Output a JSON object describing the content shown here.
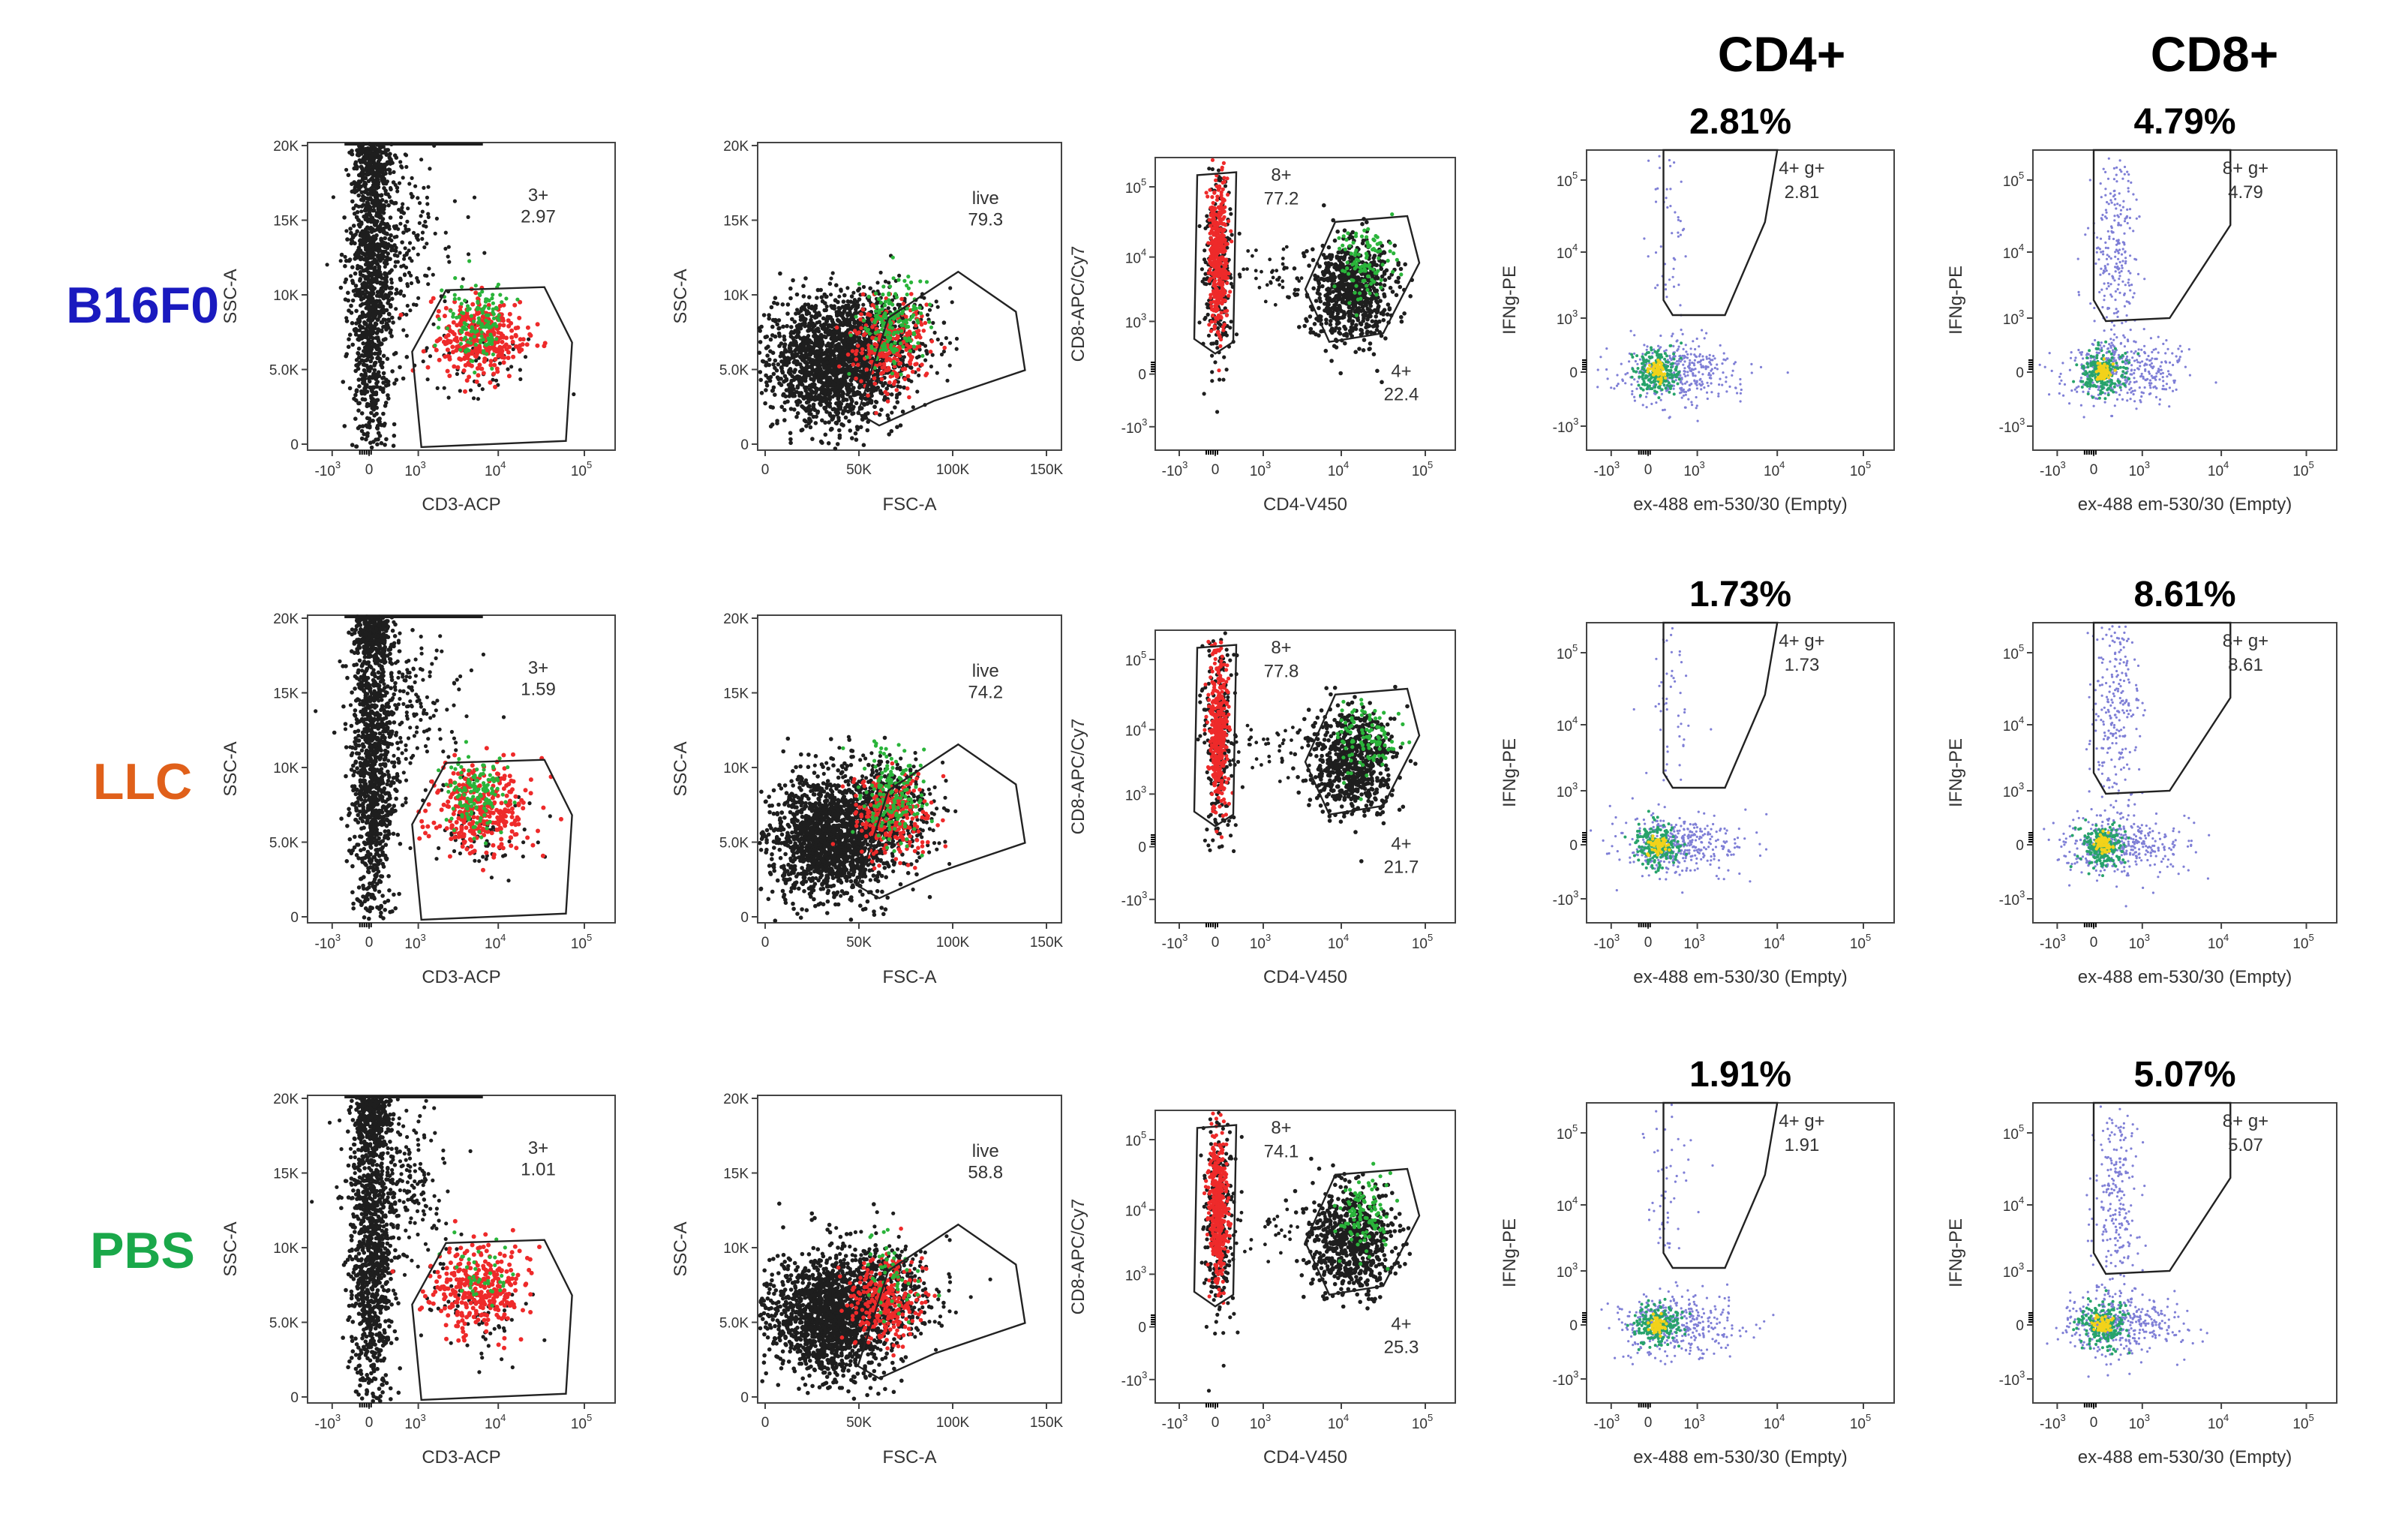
{
  "chart_data": {
    "type": "scatter",
    "column_headers": [
      "CD4+",
      "CD8+"
    ],
    "rows": [
      {
        "label": "B16F0",
        "color": "#1a1abf",
        "panels": {
          "cd3": {
            "gate": "3+",
            "value": "2.97"
          },
          "live": {
            "gate": "live",
            "value": "79.3"
          },
          "cd4cd8": {
            "gate8": "8+",
            "value8": "77.2",
            "gate4": "4+",
            "value4": "22.4"
          },
          "ifn_cd4": {
            "gate": "4+ g+",
            "value": "2.81",
            "percent": "2.81%"
          },
          "ifn_cd8": {
            "gate": "8+ g+",
            "value": "4.79",
            "percent": "4.79%"
          }
        }
      },
      {
        "label": "LLC",
        "color": "#e0601a",
        "panels": {
          "cd3": {
            "gate": "3+",
            "value": "1.59"
          },
          "live": {
            "gate": "live",
            "value": "74.2"
          },
          "cd4cd8": {
            "gate8": "8+",
            "value8": "77.8",
            "gate4": "4+",
            "value4": "21.7"
          },
          "ifn_cd4": {
            "gate": "4+ g+",
            "value": "1.73",
            "percent": "1.73%"
          },
          "ifn_cd8": {
            "gate": "8+ g+",
            "value": "8.61",
            "percent": "8.61%"
          }
        }
      },
      {
        "label": "PBS",
        "color": "#1aa84a",
        "panels": {
          "cd3": {
            "gate": "3+",
            "value": "1.01"
          },
          "live": {
            "gate": "live",
            "value": "58.8"
          },
          "cd4cd8": {
            "gate8": "8+",
            "value8": "74.1",
            "gate4": "4+",
            "value4": "25.3"
          },
          "ifn_cd4": {
            "gate": "4+ g+",
            "value": "1.91",
            "percent": "1.91%"
          },
          "ifn_cd8": {
            "gate": "8+ g+",
            "value": "5.07",
            "percent": "5.07%"
          }
        }
      }
    ],
    "axes": {
      "cd3": {
        "xlabel": "CD3-ACP",
        "ylabel": "SSC-A",
        "xscale": "log",
        "yscale": "linear"
      },
      "live": {
        "xlabel": "FSC-A",
        "ylabel": "SSC-A",
        "xscale": "linear",
        "yscale": "linear"
      },
      "cd4cd8": {
        "xlabel": "CD4-V450",
        "ylabel": "CD8-APC/Cy7",
        "xscale": "log",
        "yscale": "log"
      },
      "ifn": {
        "xlabel": "ex-488 em-530/30 (Empty)",
        "ylabel": "IFNg-PE",
        "xscale": "log",
        "yscale": "log"
      }
    },
    "ticks": {
      "ssc": [
        "0",
        "5.0K",
        "10K",
        "15K",
        "20K"
      ],
      "fsc": [
        "0",
        "50K",
        "100K",
        "150K"
      ],
      "log_base": "10",
      "log_x_exponents": [
        "3",
        "",
        "3",
        "4",
        "5"
      ],
      "log_y_exponents": [
        "3",
        "",
        "3",
        "4",
        "5"
      ],
      "log_neg_prefix": "-10",
      "zero": "0"
    },
    "colors": {
      "ungated": "#1e1e1e",
      "cd8_gate": "#ee2a2a",
      "cd4_gate": "#2ab43a",
      "density_low": "#7f7fd6",
      "density_mid": "#27a36b",
      "density_high": "#f2d21a"
    }
  }
}
